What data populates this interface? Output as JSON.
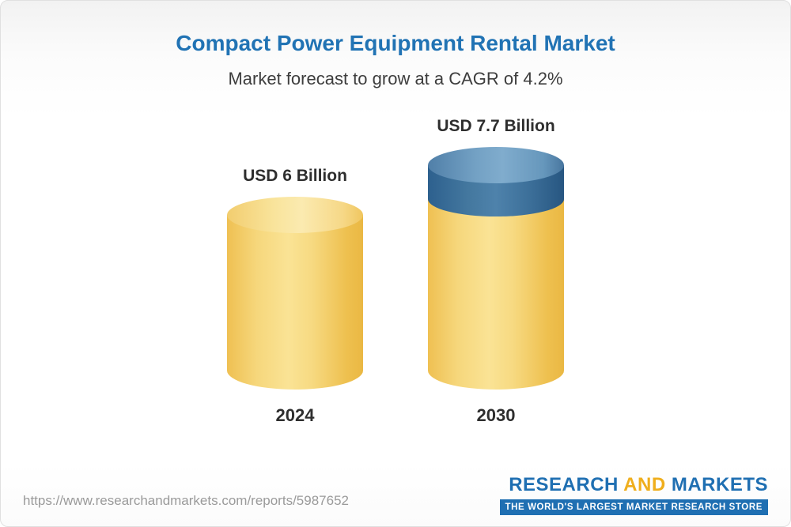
{
  "header": {
    "title": "Compact Power Equipment Rental Market",
    "subtitle": "Market forecast to grow at a CAGR of 4.2%"
  },
  "chart_data": {
    "type": "bar",
    "style": "3d-cylinder",
    "title": "Compact Power Equipment Rental Market",
    "subtitle": "Market forecast to grow at a CAGR of 4.2%",
    "categories": [
      "2024",
      "2030"
    ],
    "values": [
      6,
      7.7
    ],
    "value_labels": [
      "USD 6 Billion",
      "USD 7.7 Billion"
    ],
    "unit": "USD Billion",
    "cagr_percent": 4.2,
    "ylim": [
      0,
      8
    ],
    "axes": "none",
    "legend": "none",
    "bars": [
      {
        "category": "2024",
        "total": 6,
        "label": "USD 6 Billion",
        "segments": [
          {
            "name": "base",
            "value": 6,
            "color": "#F6D77C"
          }
        ]
      },
      {
        "category": "2030",
        "total": 7.7,
        "label": "USD 7.7 Billion",
        "segments": [
          {
            "name": "base",
            "value": 6,
            "color": "#F6D77C"
          },
          {
            "name": "growth",
            "value": 1.7,
            "color": "#4E82AB"
          }
        ]
      }
    ],
    "colors": {
      "base_segment": "#F6D77C",
      "growth_segment": "#4E82AB",
      "title_text": "#2173B4",
      "label_text": "#2E2E2E"
    }
  },
  "footer": {
    "url": "https://www.researchandmarkets.com/reports/5987652",
    "logo": {
      "word1": "RESEARCH ",
      "word2": "AND",
      "word3": " MARKETS",
      "tagline": "THE WORLD'S LARGEST MARKET RESEARCH STORE"
    }
  }
}
